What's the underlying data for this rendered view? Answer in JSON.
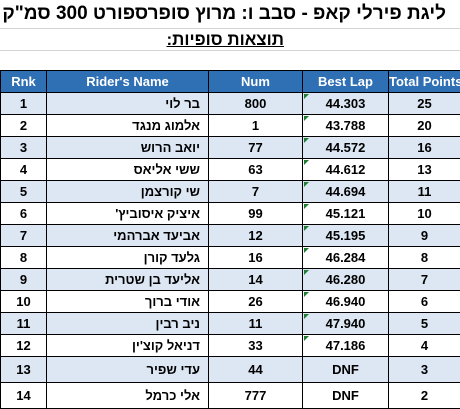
{
  "title": "ליגת פירלי קאפ - סבב ו: מרוץ סופרספורט 300 סמ\"ק",
  "subtitle": "תוצאות סופיות:",
  "headers": [
    "Rnk",
    "Rider's Name",
    "Num",
    "Best Lap",
    "Total Points"
  ],
  "rows": [
    {
      "rank": "1",
      "name": "בר לוי",
      "num": "800",
      "best_lap": "44.303",
      "points": "25"
    },
    {
      "rank": "2",
      "name": "אלמוג מנגד",
      "num": "1",
      "best_lap": "43.788",
      "points": "20"
    },
    {
      "rank": "3",
      "name": "יואב הרוש",
      "num": "77",
      "best_lap": "44.572",
      "points": "16"
    },
    {
      "rank": "4",
      "name": "ששי אליאס",
      "num": "63",
      "best_lap": "44.612",
      "points": "13"
    },
    {
      "rank": "5",
      "name": "שי קורצמן",
      "num": "7",
      "best_lap": "44.694",
      "points": "11"
    },
    {
      "rank": "6",
      "name": "איציק איסוביץ'",
      "num": "99",
      "best_lap": "45.121",
      "points": "10"
    },
    {
      "rank": "7",
      "name": "אביעד אברהמי",
      "num": "12",
      "best_lap": "45.195",
      "points": "9"
    },
    {
      "rank": "8",
      "name": "גלעד קורן",
      "num": "16",
      "best_lap": "46.284",
      "points": "8"
    },
    {
      "rank": "9",
      "name": "אליעד בן שטרית",
      "num": "14",
      "best_lap": "46.280",
      "points": "7"
    },
    {
      "rank": "10",
      "name": "אודי ברוך",
      "num": "26",
      "best_lap": "46.940",
      "points": "6"
    },
    {
      "rank": "11",
      "name": "ניב רבין",
      "num": "11",
      "best_lap": "47.940",
      "points": "5"
    },
    {
      "rank": "12",
      "name": "דניאל קוצ'ין",
      "num": "33",
      "best_lap": "47.186",
      "points": "4"
    },
    {
      "rank": "13",
      "name": "עדי שפיר",
      "num": "44",
      "best_lap": "DNF",
      "points": "3"
    },
    {
      "rank": "14",
      "name": "אלי כרמל",
      "num": "777",
      "best_lap": "DNF",
      "points": "2"
    }
  ],
  "colors": {
    "header_bg": "#2f6fb3",
    "stripe": "#dce7f3",
    "corner_marker": "#1e7d32"
  }
}
